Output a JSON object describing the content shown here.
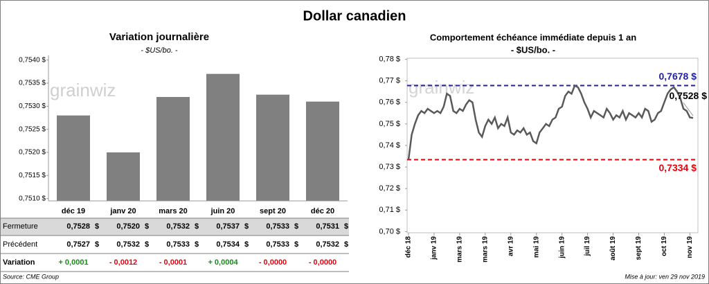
{
  "title": "Dollar canadien",
  "watermark": "grainwiz",
  "chart_data": [
    {
      "type": "bar",
      "title": "Variation  journalière",
      "subtitle": "- $US/bo. -",
      "categories": [
        "déc 19",
        "janv 20",
        "mars 20",
        "juin 20",
        "sept 20",
        "déc 20"
      ],
      "values": [
        0.7528,
        0.752,
        0.7532,
        0.7537,
        0.75325,
        0.7531
      ],
      "color": "#808080",
      "ylim": [
        0.75095,
        0.7541
      ],
      "yticks": [
        {
          "value": 0.751,
          "label": "0,7510 $"
        },
        {
          "value": 0.7515,
          "label": "0,7515 $"
        },
        {
          "value": 0.752,
          "label": "0,7520 $"
        },
        {
          "value": 0.7525,
          "label": "0,7525 $"
        },
        {
          "value": 0.753,
          "label": "0,7530 $"
        },
        {
          "value": 0.7535,
          "label": "0,7535 $"
        },
        {
          "value": 0.754,
          "label": "0,7540 $"
        }
      ],
      "grid": false
    },
    {
      "type": "line",
      "title": "Comportement échéance immédiate depuis 1 an",
      "subtitle": "- $US/bo. -",
      "categories": [
        "déc 18",
        null,
        null,
        null,
        null,
        null,
        null,
        null,
        "janv 19",
        null,
        null,
        null,
        null,
        null,
        null,
        null,
        "mars 19",
        null,
        null,
        null,
        null,
        null,
        null,
        null,
        "mars 19",
        null,
        null,
        null,
        null,
        null,
        null,
        null,
        "avr 19",
        null,
        null,
        null,
        null,
        null,
        null,
        null,
        "mai 19",
        null,
        null,
        null,
        null,
        null,
        null,
        null,
        "juin 19",
        null,
        null,
        null,
        null,
        null,
        null,
        null,
        "juil 19",
        null,
        null,
        null,
        null,
        null,
        null,
        null,
        "août 19",
        null,
        null,
        null,
        null,
        null,
        null,
        null,
        "sept 19",
        null,
        null,
        null,
        null,
        null,
        null,
        null,
        "oct 19",
        null,
        null,
        null,
        null,
        null,
        null,
        null,
        "nov 19",
        null
      ],
      "series": [
        {
          "color": "#595959",
          "values": [
            0.7334,
            0.745,
            0.75,
            0.754,
            0.756,
            0.755,
            0.757,
            0.756,
            0.755,
            0.756,
            0.755,
            0.758,
            0.764,
            0.763,
            0.756,
            0.755,
            0.757,
            0.756,
            0.759,
            0.761,
            0.76,
            0.752,
            0.746,
            0.744,
            0.749,
            0.752,
            0.75,
            0.753,
            0.748,
            0.75,
            0.749,
            0.753,
            0.746,
            0.745,
            0.747,
            0.746,
            0.748,
            0.745,
            0.746,
            0.742,
            0.741,
            0.746,
            0.748,
            0.75,
            0.749,
            0.752,
            0.753,
            0.757,
            0.758,
            0.763,
            0.765,
            0.764,
            0.7678,
            0.767,
            0.764,
            0.76,
            0.757,
            0.753,
            0.756,
            0.755,
            0.754,
            0.753,
            0.757,
            0.755,
            0.752,
            0.754,
            0.753,
            0.756,
            0.752,
            0.755,
            0.754,
            0.753,
            0.755,
            0.753,
            0.757,
            0.756,
            0.751,
            0.752,
            0.755,
            0.756,
            0.76,
            0.764,
            0.766,
            0.767,
            0.765,
            0.762,
            0.757,
            0.756,
            0.753,
            0.7528
          ],
          "value_labels": [
            null,
            null,
            null,
            null,
            null,
            null,
            null,
            null,
            null,
            null,
            null,
            null,
            null,
            null,
            null,
            null,
            null,
            null,
            null,
            null,
            null,
            null,
            null,
            null,
            null,
            null,
            null,
            null,
            null,
            null,
            null,
            null,
            null,
            null,
            null,
            null,
            null,
            null,
            null,
            null,
            null,
            null,
            null,
            null,
            null,
            null,
            null,
            null,
            null,
            null,
            null,
            null,
            null,
            null,
            null,
            null,
            null,
            null,
            null,
            null,
            null,
            null,
            null,
            null,
            null,
            null,
            null,
            null,
            null,
            null,
            null,
            null,
            null,
            null,
            null,
            null,
            null,
            null,
            null,
            null,
            null,
            null,
            null,
            null,
            null,
            null,
            null,
            null,
            null,
            "0,7528 $"
          ]
        }
      ],
      "reference_lines": [
        {
          "value": 0.7678,
          "label": "0,7678 $",
          "color": "#1f1fa8"
        },
        {
          "value": 0.7334,
          "label": "0,7334 $",
          "color": "#e8000d"
        }
      ],
      "ylim": [
        0.6995,
        0.7805
      ],
      "yticks": [
        {
          "value": 0.7,
          "label": "0,70 $"
        },
        {
          "value": 0.71,
          "label": "0,71 $"
        },
        {
          "value": 0.72,
          "label": "0,72 $"
        },
        {
          "value": 0.73,
          "label": "0,73 $"
        },
        {
          "value": 0.74,
          "label": "0,74 $"
        },
        {
          "value": 0.75,
          "label": "0,75 $"
        },
        {
          "value": 0.76,
          "label": "0,76 $"
        },
        {
          "value": 0.77,
          "label": "0,77 $"
        },
        {
          "value": 0.78,
          "label": "0,78 $"
        }
      ]
    }
  ],
  "table": {
    "unit": "$",
    "rows": [
      {
        "label": "Fermeture",
        "cells": [
          "0,7528",
          "0,7520",
          "0,7532",
          "0,7537",
          "0,7533",
          "0,7531"
        ]
      },
      {
        "label": "Précédent",
        "cells": [
          "0,7527",
          "0,7532",
          "0,7533",
          "0,7534",
          "0,7533",
          "0,7532"
        ]
      },
      {
        "label": "Variation",
        "cells": [
          "+ 0,0001",
          "- 0,0012",
          "- 0,0001",
          "+ 0,0004",
          "- 0,0000",
          "- 0,0000"
        ],
        "colors": [
          "#1a8a1a",
          "#e8000d",
          "#e8000d",
          "#1a8a1a",
          "#e8000d",
          "#e8000d"
        ]
      }
    ]
  },
  "source": "Source: CME Group",
  "updated": "Mise à jour: ven 29 nov 2019"
}
